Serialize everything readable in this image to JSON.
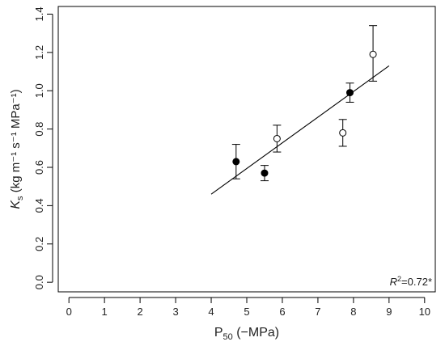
{
  "chart_data": {
    "type": "scatter",
    "xlabel": {
      "main": "P",
      "sub": "50",
      "rest": " (−MPa)"
    },
    "ylabel": {
      "k": "K",
      "ks": "s",
      "units": " (kg m⁻¹ s⁻¹ MPa⁻¹)"
    },
    "xlim": [
      -0.3,
      10.3
    ],
    "ylim": [
      -0.05,
      1.44
    ],
    "xticks": [
      0,
      1,
      2,
      3,
      4,
      5,
      6,
      7,
      8,
      9,
      10
    ],
    "yticks": [
      0.0,
      0.2,
      0.4,
      0.6,
      0.8,
      1.0,
      1.2,
      1.4
    ],
    "ytick_labels": [
      "0.0",
      "0.2",
      "0.4",
      "0.6",
      "0.8",
      "1.0",
      "1.2",
      "1.4"
    ],
    "series": [
      {
        "marker": "filled-circle",
        "points": [
          {
            "x": 4.7,
            "y": 0.63,
            "err_low": 0.54,
            "err_high": 0.72
          },
          {
            "x": 5.5,
            "y": 0.57,
            "err_low": 0.53,
            "err_high": 0.61
          },
          {
            "x": 7.9,
            "y": 0.99,
            "err_low": 0.94,
            "err_high": 1.04
          }
        ]
      },
      {
        "marker": "open-circle",
        "points": [
          {
            "x": 5.85,
            "y": 0.75,
            "err_low": 0.68,
            "err_high": 0.82
          },
          {
            "x": 7.7,
            "y": 0.78,
            "err_low": 0.71,
            "err_high": 0.85
          },
          {
            "x": 8.55,
            "y": 1.19,
            "err_low": 1.05,
            "err_high": 1.34
          }
        ]
      }
    ],
    "fit_line": {
      "x": [
        4.0,
        9.0
      ],
      "y": [
        0.46,
        1.13
      ]
    },
    "annotation": {
      "r": "R",
      "sup": "2",
      "rest": "=0.72*"
    },
    "grid": false
  }
}
